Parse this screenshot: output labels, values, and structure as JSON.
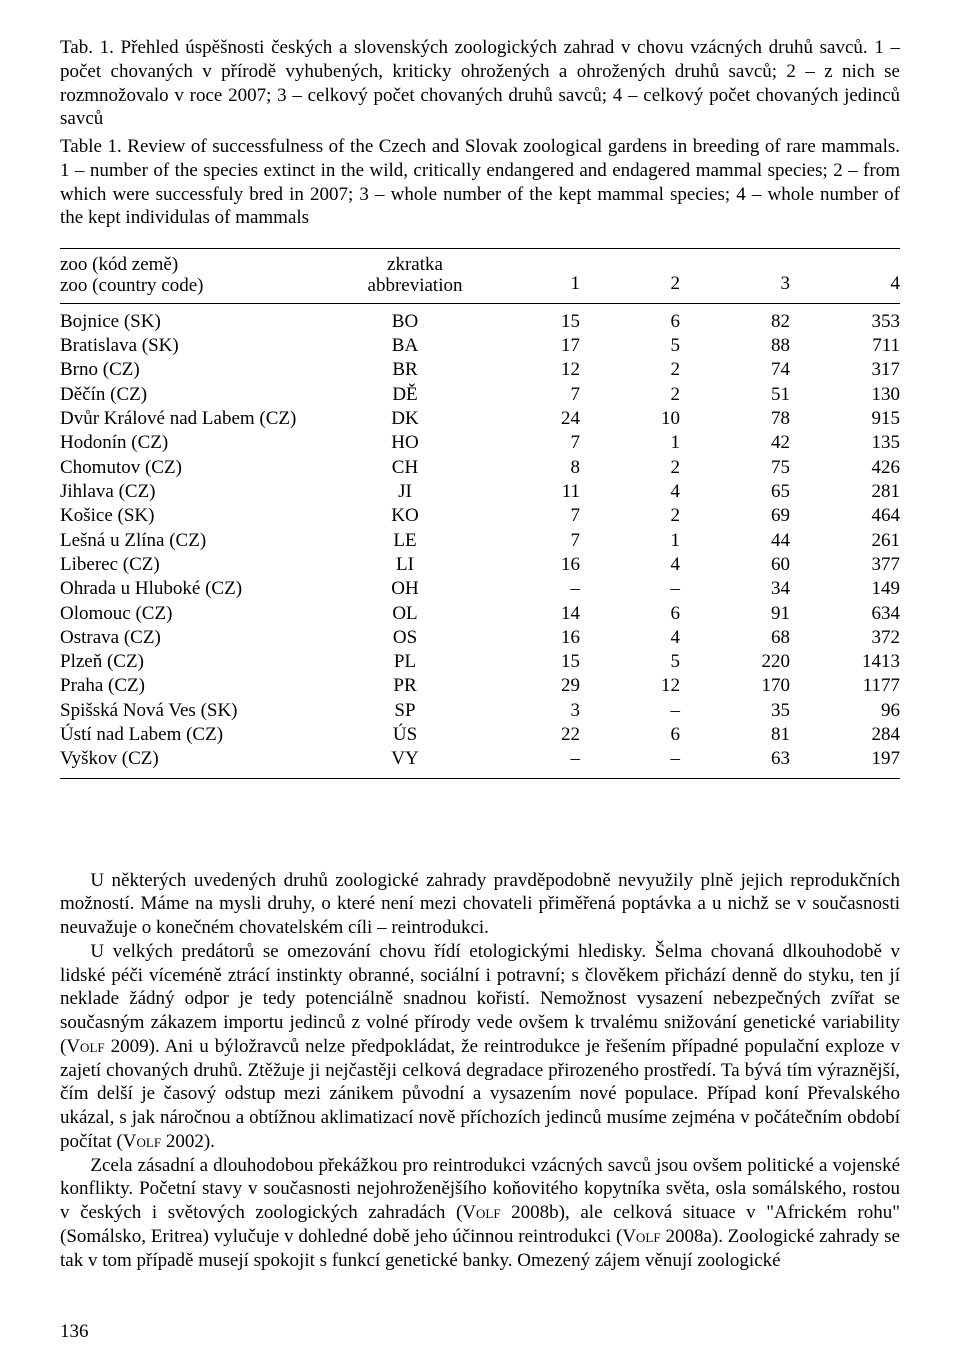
{
  "caption_cz": "Tab. 1. Přehled úspěšnosti českých a slovenských zoologických zahrad v chovu vzácných druhů savců. 1 – počet chovaných v přírodě vyhubených, kriticky ohrožených a ohrožených druhů savců; 2 – z nich se rozmnožovalo v roce 2007; 3 – celkový počet chovaných druhů savců; 4 – celkový počet chovaných jedinců savců",
  "caption_en": "Table 1. Review of successfulness of the Czech and Slovak zoological gardens in breeding of rare mammals. 1 – number of the species extinct in the wild, critically endangered and endagered mammal species; 2 – from which were successfuly bred in 2007; 3 – whole number of the kept mammal species; 4 – whole number of the kept individulas of mammals",
  "headers": {
    "zoo_cz": "zoo (kód země)",
    "zoo_en": "zoo (country code)",
    "abbr_cz": "zkratka",
    "abbr_en": "abbreviation",
    "c1": "1",
    "c2": "2",
    "c3": "3",
    "c4": "4"
  },
  "rows": [
    {
      "zoo": "Bojnice (SK)",
      "abbr": "BO",
      "c1": "15",
      "c2": "6",
      "c3": "82",
      "c4": "353"
    },
    {
      "zoo": "Bratislava (SK)",
      "abbr": "BA",
      "c1": "17",
      "c2": "5",
      "c3": "88",
      "c4": "711"
    },
    {
      "zoo": "Brno (CZ)",
      "abbr": "BR",
      "c1": "12",
      "c2": "2",
      "c3": "74",
      "c4": "317"
    },
    {
      "zoo": "Děčín (CZ)",
      "abbr": "DĚ",
      "c1": "7",
      "c2": "2",
      "c3": "51",
      "c4": "130"
    },
    {
      "zoo": "Dvůr Králové nad Labem (CZ)",
      "abbr": "DK",
      "c1": "24",
      "c2": "10",
      "c3": "78",
      "c4": "915"
    },
    {
      "zoo": "Hodonín (CZ)",
      "abbr": "HO",
      "c1": "7",
      "c2": "1",
      "c3": "42",
      "c4": "135"
    },
    {
      "zoo": "Chomutov (CZ)",
      "abbr": "CH",
      "c1": "8",
      "c2": "2",
      "c3": "75",
      "c4": "426"
    },
    {
      "zoo": "Jihlava (CZ)",
      "abbr": "JI",
      "c1": "11",
      "c2": "4",
      "c3": "65",
      "c4": "281"
    },
    {
      "zoo": "Košice (SK)",
      "abbr": "KO",
      "c1": "7",
      "c2": "2",
      "c3": "69",
      "c4": "464"
    },
    {
      "zoo": "Lešná u Zlína (CZ)",
      "abbr": "LE",
      "c1": "7",
      "c2": "1",
      "c3": "44",
      "c4": "261"
    },
    {
      "zoo": "Liberec (CZ)",
      "abbr": "LI",
      "c1": "16",
      "c2": "4",
      "c3": "60",
      "c4": "377"
    },
    {
      "zoo": "Ohrada u Hluboké (CZ)",
      "abbr": "OH",
      "c1": "–",
      "c2": "–",
      "c3": "34",
      "c4": "149"
    },
    {
      "zoo": "Olomouc (CZ)",
      "abbr": "OL",
      "c1": "14",
      "c2": "6",
      "c3": "91",
      "c4": "634"
    },
    {
      "zoo": "Ostrava (CZ)",
      "abbr": "OS",
      "c1": "16",
      "c2": "4",
      "c3": "68",
      "c4": "372"
    },
    {
      "zoo": "Plzeň (CZ)",
      "abbr": "PL",
      "c1": "15",
      "c2": "5",
      "c3": "220",
      "c4": "1413"
    },
    {
      "zoo": "Praha (CZ)",
      "abbr": "PR",
      "c1": "29",
      "c2": "12",
      "c3": "170",
      "c4": "1177"
    },
    {
      "zoo": "Spišská Nová Ves (SK)",
      "abbr": "SP",
      "c1": "3",
      "c2": "–",
      "c3": "35",
      "c4": "96"
    },
    {
      "zoo": "Ústí nad Labem (CZ)",
      "abbr": "ÚS",
      "c1": "22",
      "c2": "6",
      "c3": "81",
      "c4": "284"
    },
    {
      "zoo": "Vyškov (CZ)",
      "abbr": "VY",
      "c1": "–",
      "c2": "–",
      "c3": "63",
      "c4": "197"
    }
  ],
  "para1": "U některých uvedených druhů zoologické zahrady pravděpodobně nevyužily plně jejich reprodukčních možností. Máme na mysli druhy, o které není mezi chovateli přiměřená poptávka a u nichž se v současnosti neuvažuje o konečném chovatelském cíli – reintrodukci.",
  "para2_a": "U velkých predátorů se omezování chovu řídí etologickými hledisky. Šelma chovaná dlkouhodobě v lidské péči víceméně ztrácí instinkty obranné, sociální i potravní; s člověkem přichází denně do styku, ten jí neklade žádný odpor je tedy potenciálně snadnou kořistí. Nemožnost vysazení nebezpečných zvířat se současným zákazem importu jedinců z volné přírody vede ovšem k trvalému snižování genetické variability (",
  "para2_author1": "Volf",
  "para2_b": " 2009). Ani u býložravců nelze předpokládat, že reintrodukce je řešením případné populační exploze v zajetí chovaných druhů. Ztěžuje ji nejčastěji celková degradace přirozeného prostředí. Ta bývá tím výraznější, čím delší je časový odstup mezi zánikem původní a vysazením nové populace. Případ koní Převalského ukázal, s jak náročnou a obtížnou aklimatizací nově příchozích jedinců musíme zejména v počátečním období počítat (",
  "para2_author2": "Volf",
  "para2_c": " 2002).",
  "para3_a": "Zcela zásadní a dlouhodobou překážkou pro reintrodukci vzácných savců jsou ovšem politické a vojenské konflikty. Početní stavy v současnosti nejohroženějšího koňovitého kopytníka světa, osla somálského, rostou v českých i světových zoologických zahradách (",
  "para3_author1": "Volf",
  "para3_b": " 2008b), ale celková situace v \"Africkém rohu\" (Somálsko, Eritrea) vylučuje v dohledné době jeho účinnou reintrodukci (",
  "para3_author2": "Volf",
  "para3_c": " 2008a). Zoologické zahrady se tak v tom případě musejí spokojit s funkcí genetické banky. Omezený zájem věnují zoologické",
  "page_number": "136"
}
